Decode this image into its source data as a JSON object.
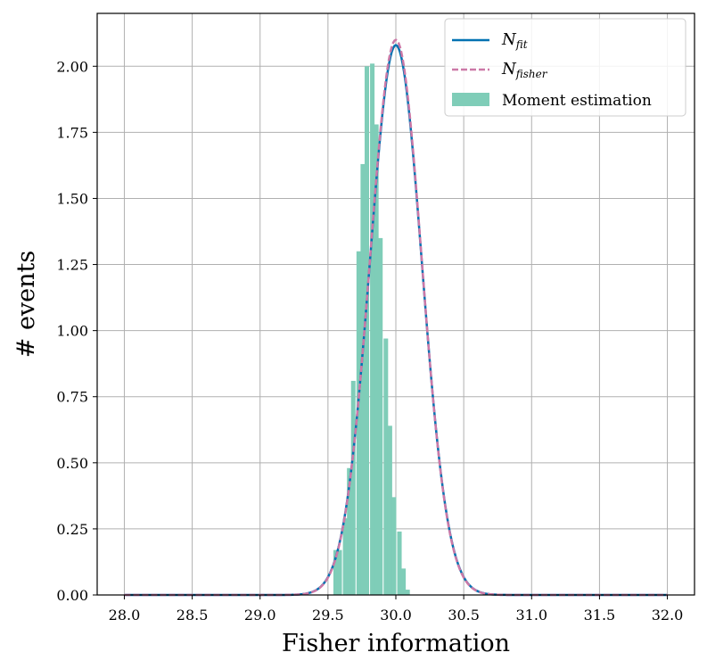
{
  "chart_data": {
    "type": "bar",
    "xlabel": "Fisher information",
    "ylabel": "# events",
    "xlim": [
      27.8,
      32.2
    ],
    "ylim": [
      0,
      2.2
    ],
    "xticks": [
      "28.0",
      "28.5",
      "29.0",
      "29.5",
      "30.0",
      "30.5",
      "31.0",
      "31.5",
      "32.0"
    ],
    "yticks": [
      "0.00",
      "0.25",
      "0.50",
      "0.75",
      "1.00",
      "1.25",
      "1.50",
      "1.75",
      "2.00"
    ],
    "grid": true,
    "legend": {
      "position": "top-right",
      "entries": [
        {
          "main": "N",
          "sub": "fit",
          "style": "solid",
          "color": "#0072b2"
        },
        {
          "main": "N",
          "sub": "fisher",
          "style": "dashed",
          "color": "#cc79a7"
        },
        {
          "label": "Moment estimation",
          "style": "patch",
          "color": "#7fcdb8"
        }
      ]
    },
    "histogram": {
      "name": "Moment estimation",
      "color": "#7fcdb8",
      "bin_width": 0.033,
      "bins": [
        {
          "x": 29.54,
          "value": 0.17
        },
        {
          "x": 29.57,
          "value": 0.17
        },
        {
          "x": 29.61,
          "value": 0.29
        },
        {
          "x": 29.64,
          "value": 0.48
        },
        {
          "x": 29.67,
          "value": 0.81
        },
        {
          "x": 29.71,
          "value": 1.3
        },
        {
          "x": 29.74,
          "value": 1.63
        },
        {
          "x": 29.77,
          "value": 2.0
        },
        {
          "x": 29.81,
          "value": 2.01
        },
        {
          "x": 29.84,
          "value": 1.78
        },
        {
          "x": 29.87,
          "value": 1.35
        },
        {
          "x": 29.91,
          "value": 0.97
        },
        {
          "x": 29.94,
          "value": 0.64
        },
        {
          "x": 29.97,
          "value": 0.37
        },
        {
          "x": 30.01,
          "value": 0.24
        },
        {
          "x": 30.04,
          "value": 0.1
        },
        {
          "x": 30.07,
          "value": 0.02
        }
      ]
    },
    "curves": [
      {
        "name": "N_fit",
        "type": "normal",
        "mean": 30.0,
        "std": 0.191,
        "peak": 2.08,
        "x_range": [
          28.0,
          32.0
        ],
        "color": "#0072b2",
        "style": "solid"
      },
      {
        "name": "N_fisher",
        "type": "normal",
        "mean": 30.0,
        "std": 0.19,
        "peak": 2.1,
        "x_range": [
          28.0,
          32.0
        ],
        "color": "#cc79a7",
        "style": "dashed"
      }
    ]
  }
}
